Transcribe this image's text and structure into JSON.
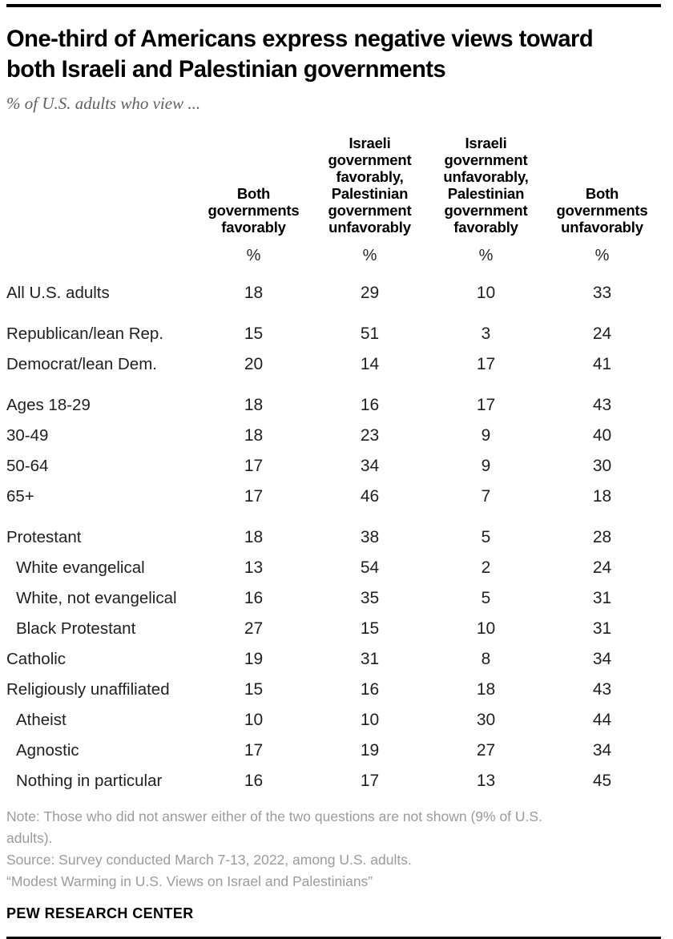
{
  "header": {
    "title_lines": [
      "One-third of Americans express negative views toward",
      "both Israeli and Palestinian governments"
    ],
    "subtitle": "% of U.S. adults who view ..."
  },
  "table": {
    "columns": [
      {
        "label": "Both governments favorably",
        "unit": "%"
      },
      {
        "label": "Israeli government favorably, Palestinian government unfavorably",
        "unit": "%"
      },
      {
        "label": "Israeli government unfavorably, Palestinian government favorably",
        "unit": "%"
      },
      {
        "label": "Both governments unfavorably",
        "unit": "%"
      }
    ],
    "rows": [
      {
        "label": "All U.S. adults",
        "indent": false,
        "group_start": false,
        "values": [
          18,
          29,
          10,
          33
        ]
      },
      {
        "label": "Republican/lean Rep.",
        "indent": false,
        "group_start": true,
        "values": [
          15,
          51,
          3,
          24
        ]
      },
      {
        "label": "Democrat/lean Dem.",
        "indent": false,
        "group_start": false,
        "values": [
          20,
          14,
          17,
          41
        ]
      },
      {
        "label": "Ages 18-29",
        "indent": false,
        "group_start": true,
        "values": [
          18,
          16,
          17,
          43
        ]
      },
      {
        "label": "30-49",
        "indent": false,
        "group_start": false,
        "values": [
          18,
          23,
          9,
          40
        ]
      },
      {
        "label": "50-64",
        "indent": false,
        "group_start": false,
        "values": [
          17,
          34,
          9,
          30
        ]
      },
      {
        "label": "65+",
        "indent": false,
        "group_start": false,
        "values": [
          17,
          46,
          7,
          18
        ]
      },
      {
        "label": "Protestant",
        "indent": false,
        "group_start": true,
        "values": [
          18,
          38,
          5,
          28
        ]
      },
      {
        "label": "White evangelical",
        "indent": true,
        "group_start": false,
        "values": [
          13,
          54,
          2,
          24
        ]
      },
      {
        "label": "White, not evangelical",
        "indent": true,
        "group_start": false,
        "values": [
          16,
          35,
          5,
          31
        ]
      },
      {
        "label": "Black Protestant",
        "indent": true,
        "group_start": false,
        "values": [
          27,
          15,
          10,
          31
        ]
      },
      {
        "label": "Catholic",
        "indent": false,
        "group_start": false,
        "values": [
          19,
          31,
          8,
          34
        ]
      },
      {
        "label": "Religiously unaffiliated",
        "indent": false,
        "group_start": false,
        "values": [
          15,
          16,
          18,
          43
        ]
      },
      {
        "label": "Atheist",
        "indent": true,
        "group_start": false,
        "values": [
          10,
          10,
          30,
          44
        ]
      },
      {
        "label": "Agnostic",
        "indent": true,
        "group_start": false,
        "values": [
          17,
          19,
          27,
          34
        ]
      },
      {
        "label": "Nothing in particular",
        "indent": true,
        "group_start": false,
        "values": [
          16,
          17,
          13,
          45
        ]
      }
    ]
  },
  "footer": {
    "note_lines": [
      "Note: Those who did not answer either of the two questions are not shown (9% of U.S.",
      "adults)."
    ],
    "source": "Source: Survey conducted March 7-13, 2022, among U.S. adults.",
    "report": "“Modest Warming in U.S. Views on Israel and Palestinians”",
    "wordmark": "PEW RESEARCH CENTER"
  },
  "chart_data": {
    "type": "table",
    "title": "One-third of Americans express negative views toward both Israeli and Palestinian governments",
    "subtitle": "% of U.S. adults who view ...",
    "unit": "%",
    "categories": [
      "All U.S. adults",
      "Republican/lean Rep.",
      "Democrat/lean Dem.",
      "Ages 18-29",
      "30-49",
      "50-64",
      "65+",
      "Protestant",
      "White evangelical",
      "White, not evangelical",
      "Black Protestant",
      "Catholic",
      "Religiously unaffiliated",
      "Atheist",
      "Agnostic",
      "Nothing in particular"
    ],
    "series": [
      {
        "name": "Both governments favorably",
        "values": [
          18,
          15,
          20,
          18,
          18,
          17,
          17,
          18,
          13,
          16,
          27,
          19,
          15,
          10,
          17,
          16
        ]
      },
      {
        "name": "Israeli government favorably, Palestinian government unfavorably",
        "values": [
          29,
          51,
          14,
          16,
          23,
          34,
          46,
          38,
          54,
          35,
          15,
          31,
          16,
          10,
          19,
          17
        ]
      },
      {
        "name": "Israeli government unfavorably, Palestinian government favorably",
        "values": [
          10,
          3,
          17,
          17,
          9,
          9,
          7,
          5,
          2,
          5,
          10,
          8,
          18,
          30,
          27,
          13
        ]
      },
      {
        "name": "Both governments unfavorably",
        "values": [
          33,
          24,
          41,
          43,
          40,
          30,
          18,
          28,
          24,
          31,
          31,
          34,
          43,
          44,
          34,
          45
        ]
      }
    ]
  }
}
